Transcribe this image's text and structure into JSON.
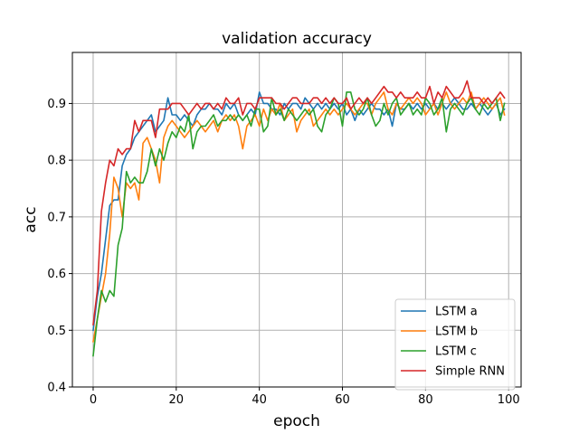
{
  "chart_data": {
    "type": "line",
    "title": "validation accuracy",
    "xlabel": "epoch",
    "ylabel": "acc",
    "xlim": [
      -5,
      103
    ],
    "ylim": [
      0.4,
      0.99
    ],
    "xticks": [
      0,
      20,
      40,
      60,
      80,
      100
    ],
    "yticks": [
      0.4,
      0.5,
      0.6,
      0.7,
      0.8,
      0.9
    ],
    "xtick_labels": [
      "0",
      "20",
      "40",
      "60",
      "80",
      "100"
    ],
    "ytick_labels": [
      "0.4",
      "0.5",
      "0.6",
      "0.7",
      "0.8",
      "0.9"
    ],
    "grid": true,
    "legend_position": "lower-right",
    "series": [
      {
        "name": "LSTM a",
        "color": "#1f77b4",
        "x": [
          0,
          1,
          2,
          3,
          4,
          5,
          6,
          7,
          8,
          9,
          10,
          11,
          12,
          13,
          14,
          15,
          16,
          17,
          18,
          19,
          20,
          21,
          22,
          23,
          24,
          25,
          26,
          27,
          28,
          29,
          30,
          31,
          32,
          33,
          34,
          35,
          36,
          37,
          38,
          39,
          40,
          41,
          42,
          43,
          44,
          45,
          46,
          47,
          48,
          49,
          50,
          51,
          52,
          53,
          54,
          55,
          56,
          57,
          58,
          59,
          60,
          61,
          62,
          63,
          64,
          65,
          66,
          67,
          68,
          69,
          70,
          71,
          72,
          73,
          74,
          75,
          76,
          77,
          78,
          79,
          80,
          81,
          82,
          83,
          84,
          85,
          86,
          87,
          88,
          89,
          90,
          91,
          92,
          93,
          94,
          95,
          96,
          97,
          98,
          99
        ],
        "y": [
          0.5,
          0.56,
          0.6,
          0.66,
          0.72,
          0.73,
          0.73,
          0.79,
          0.81,
          0.82,
          0.84,
          0.85,
          0.86,
          0.87,
          0.88,
          0.85,
          0.86,
          0.87,
          0.91,
          0.88,
          0.88,
          0.87,
          0.88,
          0.87,
          0.86,
          0.88,
          0.89,
          0.89,
          0.9,
          0.89,
          0.89,
          0.88,
          0.9,
          0.89,
          0.9,
          0.88,
          0.87,
          0.88,
          0.89,
          0.88,
          0.92,
          0.9,
          0.9,
          0.89,
          0.89,
          0.88,
          0.9,
          0.89,
          0.9,
          0.9,
          0.89,
          0.91,
          0.9,
          0.89,
          0.9,
          0.89,
          0.9,
          0.89,
          0.9,
          0.89,
          0.9,
          0.88,
          0.89,
          0.87,
          0.89,
          0.88,
          0.89,
          0.9,
          0.89,
          0.89,
          0.88,
          0.89,
          0.86,
          0.9,
          0.89,
          0.89,
          0.9,
          0.89,
          0.9,
          0.89,
          0.9,
          0.89,
          0.9,
          0.89,
          0.9,
          0.89,
          0.9,
          0.91,
          0.9,
          0.89,
          0.89,
          0.9,
          0.89,
          0.9,
          0.89,
          0.88,
          0.89,
          0.9,
          0.88,
          0.89
        ]
      },
      {
        "name": "LSTM b",
        "color": "#ff7f0e",
        "x": [
          0,
          1,
          2,
          3,
          4,
          5,
          6,
          7,
          8,
          9,
          10,
          11,
          12,
          13,
          14,
          15,
          16,
          17,
          18,
          19,
          20,
          21,
          22,
          23,
          24,
          25,
          26,
          27,
          28,
          29,
          30,
          31,
          32,
          33,
          34,
          35,
          36,
          37,
          38,
          39,
          40,
          41,
          42,
          43,
          44,
          45,
          46,
          47,
          48,
          49,
          50,
          51,
          52,
          53,
          54,
          55,
          56,
          57,
          58,
          59,
          60,
          61,
          62,
          63,
          64,
          65,
          66,
          67,
          68,
          69,
          70,
          71,
          72,
          73,
          74,
          75,
          76,
          77,
          78,
          79,
          80,
          81,
          82,
          83,
          84,
          85,
          86,
          87,
          88,
          89,
          90,
          91,
          92,
          93,
          94,
          95,
          96,
          97,
          98,
          99
        ],
        "y": [
          0.48,
          0.52,
          0.56,
          0.6,
          0.67,
          0.77,
          0.75,
          0.7,
          0.76,
          0.75,
          0.76,
          0.73,
          0.83,
          0.84,
          0.82,
          0.8,
          0.76,
          0.84,
          0.86,
          0.87,
          0.86,
          0.85,
          0.84,
          0.85,
          0.86,
          0.87,
          0.86,
          0.85,
          0.86,
          0.87,
          0.85,
          0.87,
          0.88,
          0.87,
          0.88,
          0.86,
          0.82,
          0.86,
          0.87,
          0.88,
          0.86,
          0.89,
          0.87,
          0.89,
          0.88,
          0.9,
          0.87,
          0.88,
          0.89,
          0.85,
          0.87,
          0.88,
          0.89,
          0.86,
          0.87,
          0.88,
          0.89,
          0.88,
          0.89,
          0.88,
          0.89,
          0.9,
          0.89,
          0.88,
          0.89,
          0.9,
          0.9,
          0.88,
          0.9,
          0.91,
          0.92,
          0.89,
          0.88,
          0.9,
          0.89,
          0.9,
          0.91,
          0.9,
          0.91,
          0.9,
          0.88,
          0.89,
          0.9,
          0.88,
          0.9,
          0.92,
          0.9,
          0.89,
          0.9,
          0.91,
          0.9,
          0.92,
          0.89,
          0.9,
          0.91,
          0.9,
          0.89,
          0.9,
          0.91,
          0.88
        ]
      },
      {
        "name": "LSTM c",
        "color": "#2ca02c",
        "x": [
          0,
          1,
          2,
          3,
          4,
          5,
          6,
          7,
          8,
          9,
          10,
          11,
          12,
          13,
          14,
          15,
          16,
          17,
          18,
          19,
          20,
          21,
          22,
          23,
          24,
          25,
          26,
          27,
          28,
          29,
          30,
          31,
          32,
          33,
          34,
          35,
          36,
          37,
          38,
          39,
          40,
          41,
          42,
          43,
          44,
          45,
          46,
          47,
          48,
          49,
          50,
          51,
          52,
          53,
          54,
          55,
          56,
          57,
          58,
          59,
          60,
          61,
          62,
          63,
          64,
          65,
          66,
          67,
          68,
          69,
          70,
          71,
          72,
          73,
          74,
          75,
          76,
          77,
          78,
          79,
          80,
          81,
          82,
          83,
          84,
          85,
          86,
          87,
          88,
          89,
          90,
          91,
          92,
          93,
          94,
          95,
          96,
          97,
          98,
          99
        ],
        "y": [
          0.455,
          0.52,
          0.57,
          0.55,
          0.57,
          0.56,
          0.65,
          0.68,
          0.78,
          0.76,
          0.77,
          0.76,
          0.76,
          0.78,
          0.82,
          0.79,
          0.82,
          0.8,
          0.83,
          0.85,
          0.84,
          0.86,
          0.85,
          0.88,
          0.82,
          0.85,
          0.86,
          0.86,
          0.87,
          0.88,
          0.86,
          0.87,
          0.87,
          0.88,
          0.87,
          0.88,
          0.87,
          0.88,
          0.86,
          0.89,
          0.89,
          0.85,
          0.86,
          0.91,
          0.88,
          0.89,
          0.87,
          0.89,
          0.88,
          0.87,
          0.88,
          0.89,
          0.88,
          0.89,
          0.86,
          0.85,
          0.88,
          0.89,
          0.91,
          0.9,
          0.86,
          0.92,
          0.92,
          0.89,
          0.88,
          0.89,
          0.91,
          0.88,
          0.86,
          0.87,
          0.9,
          0.88,
          0.9,
          0.91,
          0.88,
          0.89,
          0.9,
          0.88,
          0.89,
          0.88,
          0.91,
          0.9,
          0.88,
          0.89,
          0.91,
          0.85,
          0.89,
          0.9,
          0.89,
          0.88,
          0.9,
          0.91,
          0.89,
          0.88,
          0.9,
          0.89,
          0.9,
          0.91,
          0.87,
          0.9
        ]
      },
      {
        "name": "Simple RNN",
        "color": "#d62728",
        "x": [
          0,
          1,
          2,
          3,
          4,
          5,
          6,
          7,
          8,
          9,
          10,
          11,
          12,
          13,
          14,
          15,
          16,
          17,
          18,
          19,
          20,
          21,
          22,
          23,
          24,
          25,
          26,
          27,
          28,
          29,
          30,
          31,
          32,
          33,
          34,
          35,
          36,
          37,
          38,
          39,
          40,
          41,
          42,
          43,
          44,
          45,
          46,
          47,
          48,
          49,
          50,
          51,
          52,
          53,
          54,
          55,
          56,
          57,
          58,
          59,
          60,
          61,
          62,
          63,
          64,
          65,
          66,
          67,
          68,
          69,
          70,
          71,
          72,
          73,
          74,
          75,
          76,
          77,
          78,
          79,
          80,
          81,
          82,
          83,
          84,
          85,
          86,
          87,
          88,
          89,
          90,
          91,
          92,
          93,
          94,
          95,
          96,
          97,
          98,
          99
        ],
        "y": [
          0.51,
          0.57,
          0.71,
          0.76,
          0.8,
          0.79,
          0.82,
          0.81,
          0.82,
          0.82,
          0.87,
          0.85,
          0.87,
          0.87,
          0.87,
          0.84,
          0.89,
          0.89,
          0.89,
          0.9,
          0.9,
          0.9,
          0.89,
          0.88,
          0.89,
          0.9,
          0.89,
          0.9,
          0.9,
          0.89,
          0.9,
          0.89,
          0.91,
          0.9,
          0.9,
          0.91,
          0.88,
          0.9,
          0.9,
          0.89,
          0.91,
          0.91,
          0.91,
          0.91,
          0.9,
          0.9,
          0.89,
          0.9,
          0.91,
          0.91,
          0.9,
          0.9,
          0.9,
          0.91,
          0.91,
          0.9,
          0.91,
          0.9,
          0.91,
          0.9,
          0.9,
          0.91,
          0.89,
          0.9,
          0.91,
          0.9,
          0.91,
          0.9,
          0.91,
          0.92,
          0.93,
          0.92,
          0.92,
          0.91,
          0.92,
          0.91,
          0.91,
          0.91,
          0.92,
          0.91,
          0.91,
          0.93,
          0.9,
          0.92,
          0.91,
          0.93,
          0.92,
          0.91,
          0.91,
          0.92,
          0.94,
          0.91,
          0.91,
          0.91,
          0.9,
          0.91,
          0.9,
          0.91,
          0.92,
          0.91
        ]
      }
    ]
  }
}
